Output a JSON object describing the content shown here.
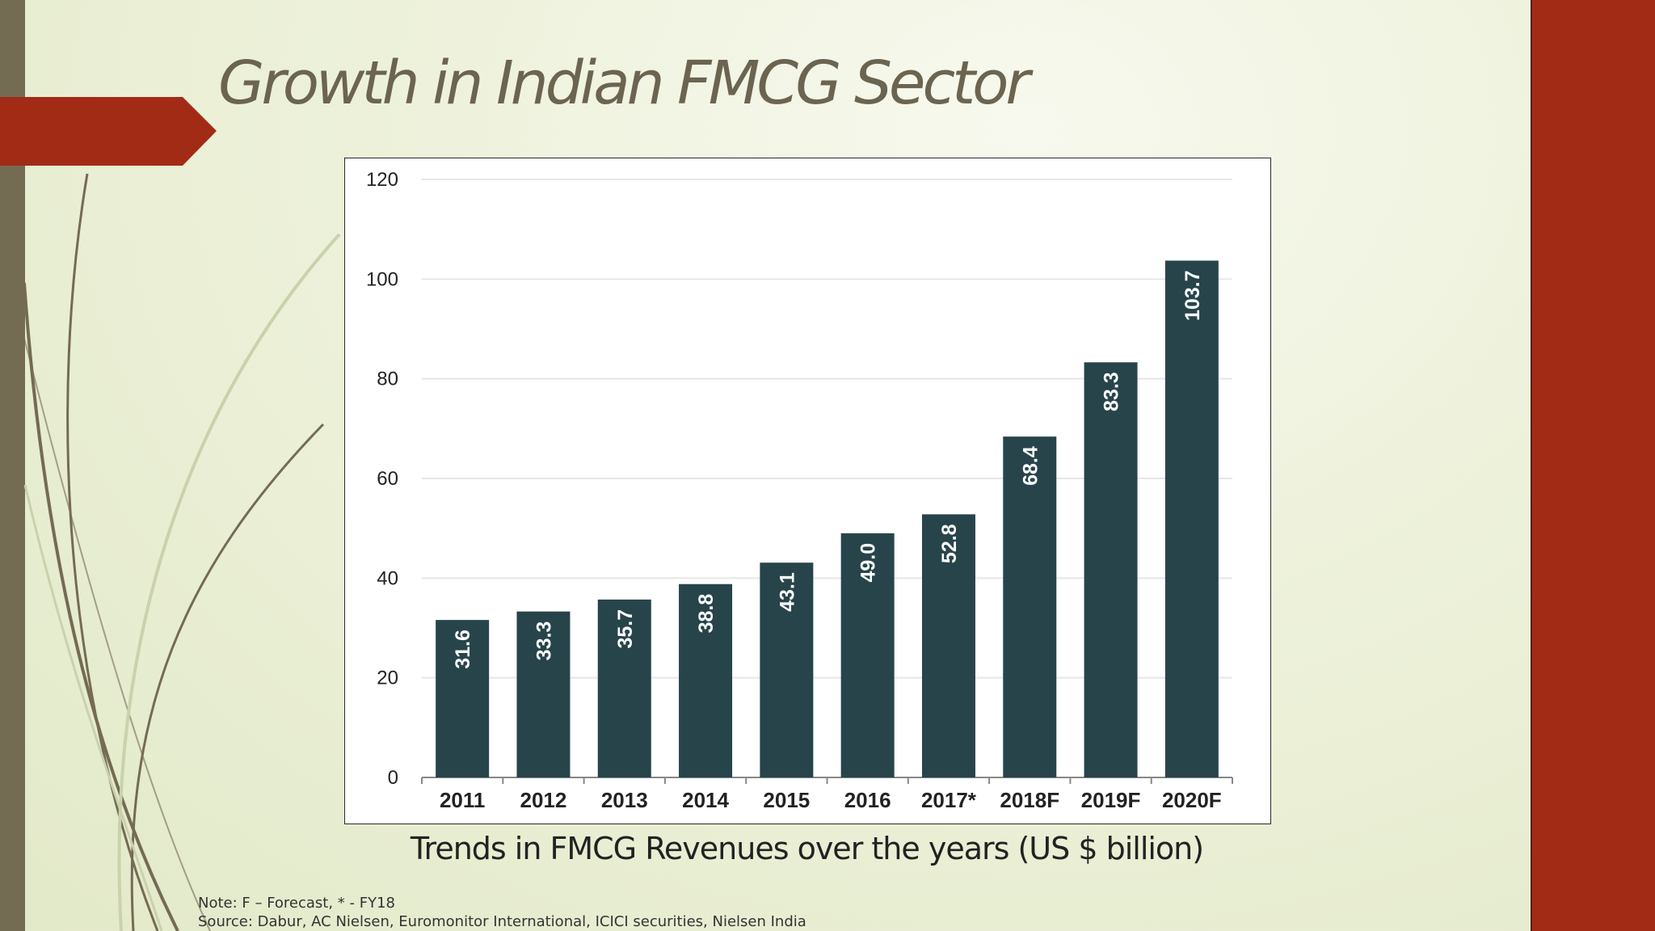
{
  "slide": {
    "title": "Growth in Indian FMCG Sector",
    "caption": "Trends in FMCG Revenues over the years (US $ billion)",
    "note": "Note: F – Forecast, * - FY18",
    "source": "Source: Dabur, AC Nielsen, Euromonitor International, ICICI securities, Nielsen India"
  },
  "colors": {
    "accent_red": "#a22b16",
    "strip_olive": "#746b53",
    "bar_fill": "#27444b",
    "bar_label": "#ffffff",
    "gridline": "#e6e6e6",
    "axis_text": "#222222"
  },
  "chart_data": {
    "type": "bar",
    "categories": [
      "2011",
      "2012",
      "2013",
      "2014",
      "2015",
      "2016",
      "2017*",
      "2018F",
      "2019F",
      "2020F"
    ],
    "values": [
      31.6,
      33.3,
      35.7,
      38.8,
      43.1,
      49.0,
      52.8,
      68.4,
      83.3,
      103.7
    ],
    "value_labels": [
      "31.6",
      "33.3",
      "35.7",
      "38.8",
      "43.1",
      "49.0",
      "52.8",
      "68.4",
      "83.3",
      "103.7"
    ],
    "yticks": [
      "0",
      "20",
      "40",
      "60",
      "80",
      "100",
      "120"
    ],
    "ylim": [
      0,
      120
    ],
    "grid": true,
    "data_labels": "inside-bar-rotated"
  }
}
